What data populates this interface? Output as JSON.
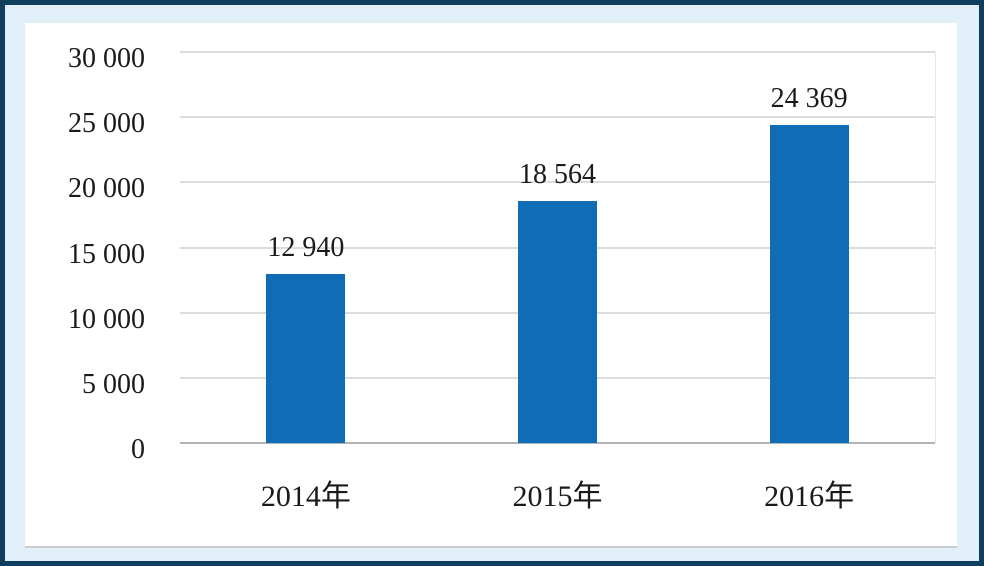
{
  "colors": {
    "frame_border": "#103e5e",
    "page_background": "#e1eff8",
    "panel_background": "#ffffff",
    "gridline": "#dcdcdc",
    "axis_line": "#b0b4b8",
    "bar": "#0f6cb5",
    "text": "#1a1a1a"
  },
  "chart_data": {
    "type": "bar",
    "title": "",
    "xlabel": "",
    "ylabel": "",
    "categories": [
      "2014年",
      "2015年",
      "2016年"
    ],
    "values": [
      12940,
      18564,
      24369
    ],
    "value_labels": [
      "12 940",
      "18 564",
      "24 369"
    ],
    "ylim": [
      0,
      30000
    ],
    "ytick_step": 5000,
    "yticks": [
      0,
      5000,
      10000,
      15000,
      20000,
      25000,
      30000
    ],
    "ytick_labels": [
      "0",
      "5 000",
      "10 000",
      "15 000",
      "20 000",
      "25 000",
      "30 000"
    ],
    "grid": true,
    "legend_position": "none"
  }
}
